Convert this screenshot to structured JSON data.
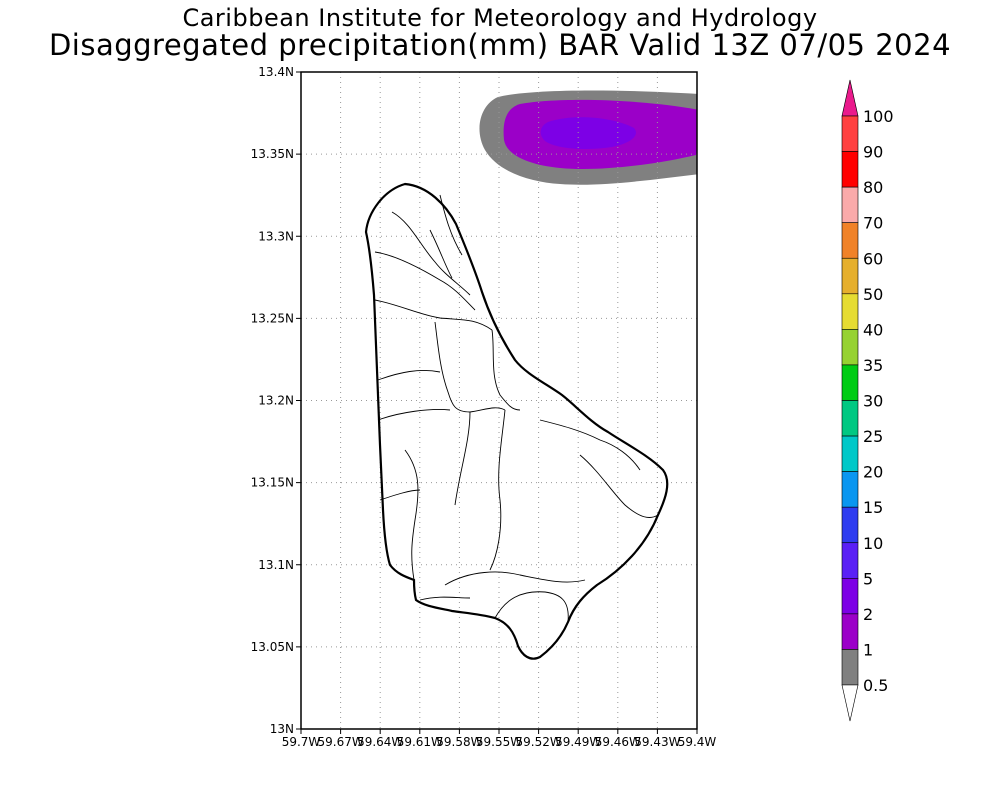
{
  "header": {
    "title": "Caribbean Institute for Meteorology and Hydrology",
    "subtitle": "Disaggregated precipitation(mm) BAR Valid 13Z 07/05 2024"
  },
  "map": {
    "lat_range": [
      13.0,
      13.4
    ],
    "lon_range": [
      -59.7,
      -59.4
    ],
    "lat_labels": [
      "13.4N",
      "13.35N",
      "13.3N",
      "13.25N",
      "13.2N",
      "13.15N",
      "13.1N",
      "13.05N",
      "13N"
    ],
    "lon_labels": [
      "59.7W",
      "59.67W",
      "59.64W",
      "59.61W",
      "59.58W",
      "59.55W",
      "59.52W",
      "59.49W",
      "59.46W",
      "59.43W",
      "59.4W"
    ],
    "grid": true,
    "precip_feature": {
      "location": "top-right corner, offshore north-east of the island",
      "levels_present": [
        "0.5",
        "1",
        "2"
      ]
    }
  },
  "colorbar": {
    "levels": [
      {
        "label": "0.5",
        "color": "#ffffff"
      },
      {
        "label": "1",
        "color": "#808080"
      },
      {
        "label": "2",
        "color": "#9b00c8"
      },
      {
        "label": "5",
        "color": "#7d00e6"
      },
      {
        "label": "10",
        "color": "#5a20f5"
      },
      {
        "label": "15",
        "color": "#2e3cf0"
      },
      {
        "label": "20",
        "color": "#0a96f0"
      },
      {
        "label": "25",
        "color": "#00c8c8"
      },
      {
        "label": "30",
        "color": "#00c882"
      },
      {
        "label": "35",
        "color": "#00cc14"
      },
      {
        "label": "40",
        "color": "#96d232"
      },
      {
        "label": "50",
        "color": "#e6dc32"
      },
      {
        "label": "60",
        "color": "#e6af2d"
      },
      {
        "label": "70",
        "color": "#f08228"
      },
      {
        "label": "80",
        "color": "#faaaaa"
      },
      {
        "label": "90",
        "color": "#ff0000"
      },
      {
        "label": "100",
        "color": "#ff4040"
      }
    ],
    "over_color": "#ea1a8c"
  }
}
